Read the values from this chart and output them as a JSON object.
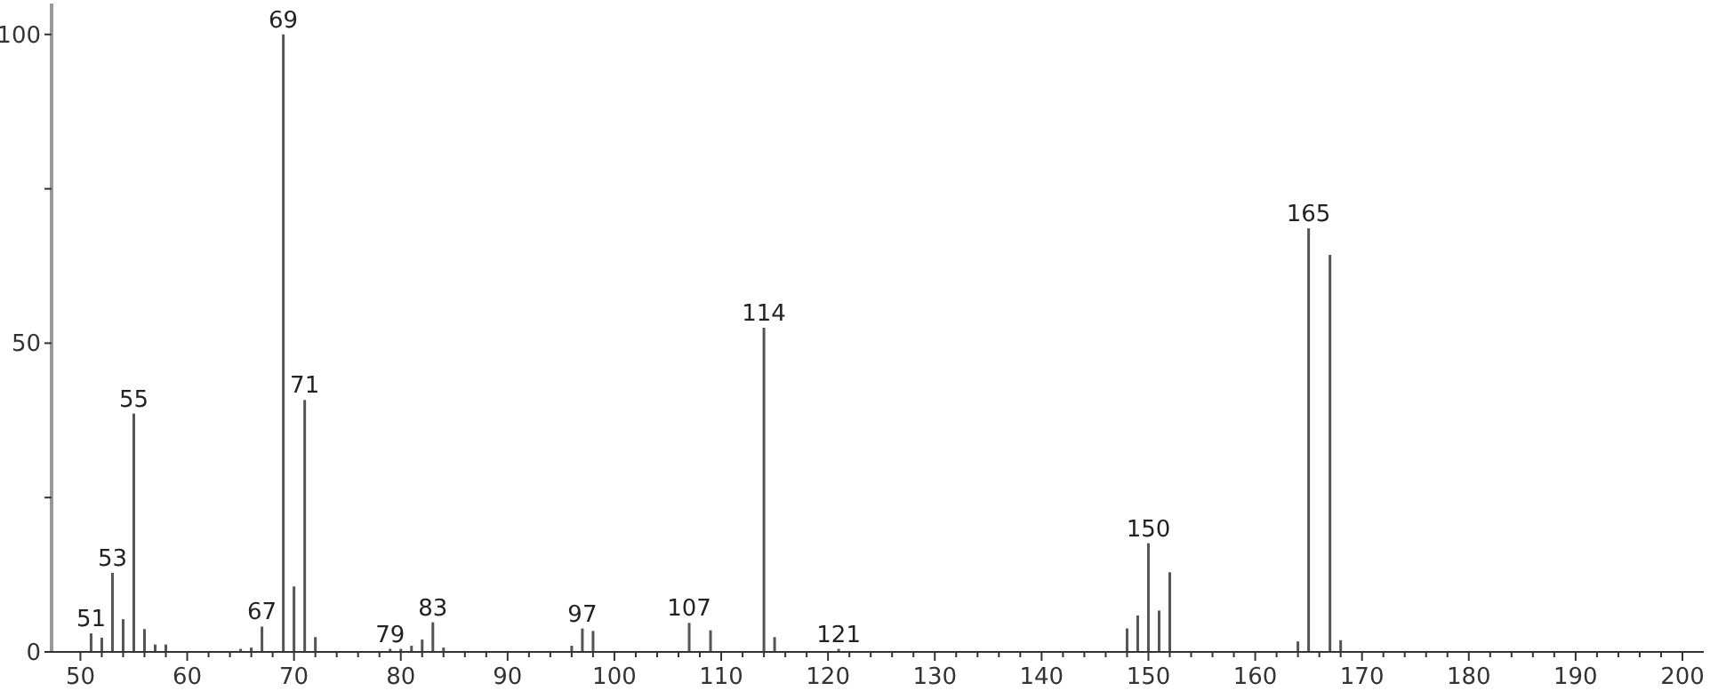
{
  "chart_data": {
    "type": "bar",
    "color": "#555555",
    "x": [
      51,
      52,
      53,
      54,
      55,
      56,
      57,
      58,
      65,
      66,
      67,
      69,
      70,
      71,
      72,
      79,
      80,
      81,
      82,
      83,
      84,
      96,
      97,
      98,
      107,
      109,
      114,
      115,
      121,
      148,
      149,
      150,
      151,
      152,
      164,
      165,
      167,
      168
    ],
    "values": [
      3.0,
      2.3,
      12.8,
      5.3,
      38.6,
      3.7,
      1.2,
      1.2,
      0.5,
      0.7,
      4.1,
      100,
      10.6,
      40.8,
      2.4,
      0.5,
      0.5,
      1,
      2,
      4.8,
      0.7,
      1,
      3.8,
      3.4,
      4.7,
      3.5,
      52.5,
      2.4,
      0.5,
      3.8,
      5.9,
      17.6,
      6.7,
      12.9,
      1.7,
      68.6,
      64.3,
      1.9
    ],
    "xlim": [
      47.3,
      202
    ],
    "xticks": [
      50,
      {
        "value": 52,
        "label": null
      },
      {
        "value": 54,
        "label": null
      },
      {
        "value": 56,
        "label": null
      },
      {
        "value": 58,
        "label": null
      },
      60,
      {
        "value": 62,
        "label": null
      },
      {
        "value": 64,
        "label": null
      },
      {
        "value": 66,
        "label": null
      },
      {
        "value": 68,
        "label": null
      },
      70,
      {
        "value": 72,
        "label": null
      },
      {
        "value": 74,
        "label": null
      },
      {
        "value": 76,
        "label": null
      },
      {
        "value": 78,
        "label": null
      },
      80,
      {
        "value": 82,
        "label": null
      },
      {
        "value": 84,
        "label": null
      },
      {
        "value": 86,
        "label": null
      },
      {
        "value": 88,
        "label": null
      },
      90,
      {
        "value": 92,
        "label": null
      },
      {
        "value": 94,
        "label": null
      },
      {
        "value": 96,
        "label": null
      },
      {
        "value": 98,
        "label": null
      },
      100,
      {
        "value": 102,
        "label": null
      },
      {
        "value": 104,
        "label": null
      },
      {
        "value": 106,
        "label": null
      },
      {
        "value": 108,
        "label": null
      },
      110,
      {
        "value": 112,
        "label": null
      },
      {
        "value": 114,
        "label": null
      },
      {
        "value": 116,
        "label": null
      },
      {
        "value": 118,
        "label": null
      },
      120,
      {
        "value": 122,
        "label": null
      },
      {
        "value": 124,
        "label": null
      },
      {
        "value": 126,
        "label": null
      },
      {
        "value": 128,
        "label": null
      },
      130,
      {
        "value": 132,
        "label": null
      },
      {
        "value": 134,
        "label": null
      },
      {
        "value": 136,
        "label": null
      },
      {
        "value": 138,
        "label": null
      },
      140,
      {
        "value": 142,
        "label": null
      },
      {
        "value": 144,
        "label": null
      },
      {
        "value": 146,
        "label": null
      },
      {
        "value": 148,
        "label": null
      },
      150,
      {
        "value": 152,
        "label": null
      },
      {
        "value": 154,
        "label": null
      },
      {
        "value": 156,
        "label": null
      },
      {
        "value": 158,
        "label": null
      },
      160,
      {
        "value": 162,
        "label": null
      },
      {
        "value": 164,
        "label": null
      },
      {
        "value": 166,
        "label": null
      },
      {
        "value": 168,
        "label": null
      },
      170,
      {
        "value": 172,
        "label": null
      },
      {
        "value": 174,
        "label": null
      },
      {
        "value": 176,
        "label": null
      },
      {
        "value": 178,
        "label": null
      },
      180,
      {
        "value": 182,
        "label": null
      },
      {
        "value": 184,
        "label": null
      },
      {
        "value": 186,
        "label": null
      },
      {
        "value": 188,
        "label": null
      },
      190,
      {
        "value": 192,
        "label": null
      },
      {
        "value": 194,
        "label": null
      },
      {
        "value": 196,
        "label": null
      },
      {
        "value": 198,
        "label": null
      },
      200
    ],
    "ylim": [
      0,
      105
    ],
    "yticks": [
      0,
      {
        "value": 25,
        "label": null
      },
      50,
      {
        "value": 75,
        "label": null
      },
      100
    ],
    "annotations": [
      {
        "text": "51",
        "x": 51,
        "y": 3.0
      },
      {
        "text": "53",
        "x": 53,
        "y": 12.8
      },
      {
        "text": "55",
        "x": 55,
        "y": 38.6
      },
      {
        "text": "67",
        "x": 67,
        "y": 4.1
      },
      {
        "text": "69",
        "x": 69,
        "y": 100
      },
      {
        "text": "71",
        "x": 71,
        "y": 40.8
      },
      {
        "text": "79",
        "x": 79,
        "y": 0.5
      },
      {
        "text": "83",
        "x": 83,
        "y": 4.8
      },
      {
        "text": "97",
        "x": 97,
        "y": 3.8
      },
      {
        "text": "107",
        "x": 107,
        "y": 4.7
      },
      {
        "text": "114",
        "x": 114,
        "y": 52.5
      },
      {
        "text": "121",
        "x": 121,
        "y": 0.5
      },
      {
        "text": "150",
        "x": 150,
        "y": 17.6
      },
      {
        "text": "165",
        "x": 165,
        "y": 68.6
      }
    ]
  }
}
